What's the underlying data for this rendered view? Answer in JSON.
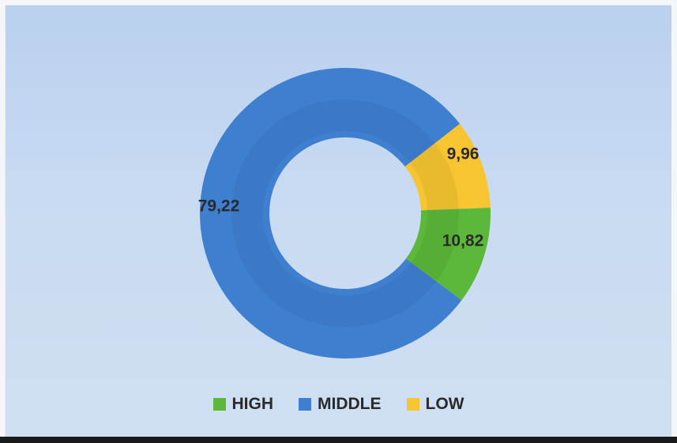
{
  "chart_data": {
    "type": "pie",
    "variant": "donut",
    "title": "",
    "slices": [
      {
        "name": "HIGH",
        "value": 10.82,
        "label": "10,82",
        "color": "#5cb83a"
      },
      {
        "name": "MIDDLE",
        "value": 79.22,
        "label": "79,22",
        "color": "#3f7fd0"
      },
      {
        "name": "LOW",
        "value": 9.96,
        "label": "9,96",
        "color": "#f7c531"
      }
    ],
    "legend_order": [
      "HIGH",
      "MIDDLE",
      "LOW"
    ],
    "legend_position": "bottom",
    "start_slice": "LOW",
    "start_angle_deg": -38,
    "direction": "clockwise"
  }
}
